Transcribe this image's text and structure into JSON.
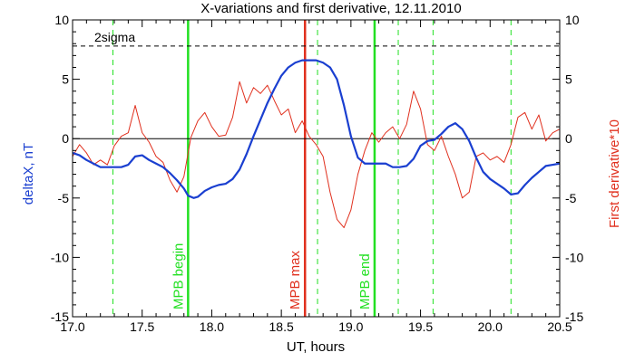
{
  "chart_data": {
    "type": "line",
    "title": "X-variations and first derivative, 12.11.2010",
    "xlabel": "UT, hours",
    "ylabel_left": "deltaX, nT",
    "ylabel_right": "First derivative*10",
    "xlim": [
      17.0,
      20.5
    ],
    "ylim": [
      -15,
      10
    ],
    "x_ticks": [
      "17.0",
      "17.5",
      "18.0",
      "18.5",
      "19.0",
      "19.5",
      "20.0",
      "20.5"
    ],
    "x_tick_values": [
      17.0,
      17.5,
      18.0,
      18.5,
      19.0,
      19.5,
      20.0,
      20.5
    ],
    "y_ticks": [
      "10",
      "5",
      "0",
      "-5",
      "-10",
      "-15"
    ],
    "y_tick_values": [
      10,
      5,
      0,
      -5,
      -10,
      -15
    ],
    "sigma_label": "2sigma",
    "sigma_level": 7.8,
    "zero_line": 0,
    "colors": {
      "deltaX": "#1a3fd0",
      "derivative": "#e0301e",
      "green": "#22e022",
      "red": "#e0301e",
      "axis": "#000000"
    },
    "markers": [
      {
        "label": "MPB begin",
        "x": 17.83,
        "color": "#22e022"
      },
      {
        "label": "MPB max",
        "x": 18.67,
        "color": "#e0301e"
      },
      {
        "label": "MPB end",
        "x": 19.17,
        "color": "#22e022"
      }
    ],
    "dashed_verticals": [
      17.29,
      18.76,
      19.34,
      19.59,
      20.15
    ],
    "series": [
      {
        "key": "deltaX",
        "color": "#1a3fd0",
        "x": [
          17.0,
          17.05,
          17.1,
          17.15,
          17.2,
          17.25,
          17.3,
          17.35,
          17.4,
          17.45,
          17.5,
          17.55,
          17.6,
          17.65,
          17.7,
          17.75,
          17.8,
          17.83,
          17.87,
          17.9,
          17.95,
          18.0,
          18.05,
          18.1,
          18.15,
          18.2,
          18.25,
          18.3,
          18.35,
          18.4,
          18.45,
          18.5,
          18.55,
          18.6,
          18.65,
          18.7,
          18.75,
          18.8,
          18.85,
          18.9,
          18.95,
          19.0,
          19.05,
          19.1,
          19.15,
          19.2,
          19.25,
          19.3,
          19.35,
          19.4,
          19.45,
          19.5,
          19.55,
          19.6,
          19.65,
          19.7,
          19.75,
          19.8,
          19.85,
          19.9,
          19.95,
          20.0,
          20.05,
          20.1,
          20.15,
          20.2,
          20.25,
          20.3,
          20.35,
          20.4,
          20.45,
          20.5
        ],
        "values": [
          -1.2,
          -1.4,
          -1.8,
          -2.1,
          -2.4,
          -2.4,
          -2.4,
          -2.4,
          -2.2,
          -1.5,
          -1.4,
          -1.8,
          -2.1,
          -2.4,
          -2.9,
          -3.5,
          -4.2,
          -4.8,
          -5.0,
          -4.9,
          -4.4,
          -4.1,
          -3.9,
          -3.8,
          -3.4,
          -2.6,
          -1.3,
          0.2,
          1.6,
          3.0,
          4.2,
          5.3,
          6.0,
          6.4,
          6.6,
          6.6,
          6.6,
          6.4,
          6.0,
          5.0,
          2.8,
          0.2,
          -1.6,
          -2.1,
          -2.1,
          -2.1,
          -2.1,
          -2.4,
          -2.4,
          -2.3,
          -1.7,
          -0.6,
          -0.2,
          -0.1,
          0.4,
          1.0,
          1.3,
          0.8,
          -0.2,
          -1.6,
          -2.8,
          -3.4,
          -3.8,
          -4.2,
          -4.7,
          -4.6,
          -3.9,
          -3.3,
          -2.8,
          -2.3,
          -2.2,
          -2.1
        ]
      },
      {
        "key": "derivative",
        "color": "#e0301e",
        "x": [
          17.0,
          17.05,
          17.1,
          17.15,
          17.2,
          17.25,
          17.3,
          17.35,
          17.4,
          17.45,
          17.5,
          17.55,
          17.6,
          17.65,
          17.7,
          17.75,
          17.8,
          17.85,
          17.9,
          17.95,
          18.0,
          18.05,
          18.1,
          18.15,
          18.2,
          18.25,
          18.3,
          18.35,
          18.4,
          18.45,
          18.5,
          18.55,
          18.6,
          18.65,
          18.7,
          18.75,
          18.8,
          18.85,
          18.9,
          18.95,
          19.0,
          19.05,
          19.1,
          19.15,
          19.2,
          19.25,
          19.3,
          19.35,
          19.4,
          19.45,
          19.5,
          19.55,
          19.6,
          19.65,
          19.7,
          19.75,
          19.8,
          19.85,
          19.9,
          19.95,
          20.0,
          20.05,
          20.1,
          20.15,
          20.2,
          20.25,
          20.3,
          20.35,
          20.4,
          20.45,
          20.5
        ],
        "values": [
          -1.5,
          -0.5,
          -1.2,
          -2.2,
          -1.8,
          -2.2,
          -0.6,
          0.2,
          0.5,
          2.8,
          0.5,
          -0.3,
          -1.5,
          -2.0,
          -3.5,
          -4.5,
          -3.2,
          0.1,
          1.5,
          2.2,
          1.0,
          0.2,
          0.3,
          1.8,
          4.8,
          3.0,
          4.3,
          3.8,
          4.5,
          3.2,
          2.0,
          2.5,
          0.5,
          1.5,
          0.2,
          -0.5,
          -1.5,
          -4.5,
          -6.8,
          -7.5,
          -6.0,
          -3.0,
          -1.0,
          0.5,
          -0.3,
          0.5,
          1.0,
          0.0,
          1.2,
          4.0,
          2.5,
          -0.5,
          -1.0,
          0.2,
          -1.5,
          -3.0,
          -5.0,
          -4.5,
          -1.5,
          -1.2,
          -1.8,
          -1.5,
          -2.0,
          -0.5,
          1.8,
          2.2,
          0.8,
          2.0,
          -0.2,
          0.5,
          0.8
        ]
      }
    ]
  }
}
